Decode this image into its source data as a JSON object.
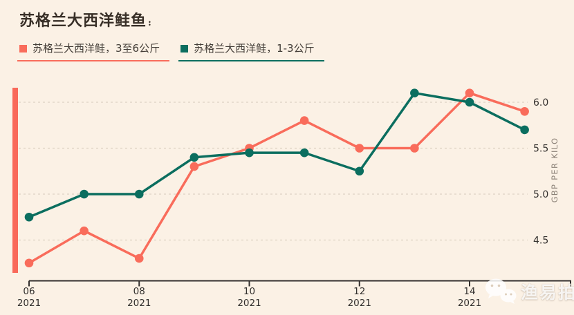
{
  "page": {
    "background": "#fbf1e5",
    "accent_bar_color": "#f9695a"
  },
  "header": {
    "title": "苏格兰大西洋鲑鱼",
    "suffix": ":"
  },
  "legend": {
    "items": [
      {
        "label": "苏格兰大西洋鲑，3至6公斤",
        "color": "#f96c5b"
      },
      {
        "label": "苏格兰大西洋鲑，1-3公斤",
        "color": "#0b6e5f"
      }
    ]
  },
  "chart_data": {
    "type": "line",
    "title": "苏格兰大西洋鲑鱼",
    "x": [
      6,
      7,
      8,
      9,
      10,
      11,
      12,
      13,
      14,
      15
    ],
    "x_ticks": [
      {
        "week": "06",
        "year": "2021"
      },
      {
        "week": "08",
        "year": "2021"
      },
      {
        "week": "10",
        "year": "2021"
      },
      {
        "week": "12",
        "year": "2021"
      },
      {
        "week": "14",
        "year": "2021"
      }
    ],
    "series": [
      {
        "name": "苏格兰大西洋鲑，3至6公斤",
        "color": "#f96c5b",
        "values": [
          4.25,
          4.6,
          4.3,
          5.3,
          5.5,
          5.8,
          5.5,
          5.5,
          6.1,
          5.9
        ]
      },
      {
        "name": "苏格兰大西洋鲑，1-3公斤",
        "color": "#0b6e5f",
        "values": [
          4.75,
          5.0,
          5.0,
          5.4,
          5.45,
          5.45,
          5.25,
          6.1,
          6.0,
          5.7
        ]
      }
    ],
    "xlabel": "",
    "ylabel": "GBP PER KILO",
    "yticks": [
      4.5,
      5.0,
      5.5,
      6.0
    ],
    "ylim": [
      4.05,
      6.3
    ],
    "grid": "horizontal-dashed",
    "legend_position": "top-left",
    "colors": {
      "axis": "#33302e",
      "grid": "#dcd1c3",
      "tick_label": "#33302e",
      "ylabel": "#8b8177"
    }
  },
  "watermark": {
    "icon": "wechat-icon",
    "text": "渔易拍"
  }
}
